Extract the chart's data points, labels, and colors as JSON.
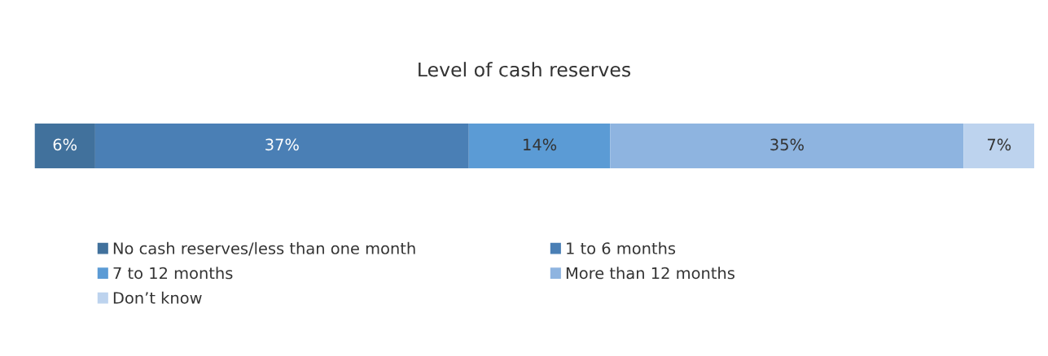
{
  "chart_data": {
    "type": "bar",
    "orientation": "horizontal",
    "stacked": true,
    "title": "Level of cash reserves",
    "categories": [
      null
    ],
    "legend": "bottom",
    "series": [
      {
        "name": "No cash reserves/less than one month",
        "color": "#41719c",
        "values": [
          6
        ],
        "value_labels": [
          "6%"
        ]
      },
      {
        "name": "1 to 6 months",
        "color": "#4a7fb5",
        "values": [
          37
        ],
        "value_labels": [
          "37%"
        ]
      },
      {
        "name": "7 to 12 months",
        "color": "#5b9bd5",
        "values": [
          14
        ],
        "value_labels": [
          "14%"
        ]
      },
      {
        "name": "More than 12 months",
        "color": "#8eb4e0",
        "values": [
          35
        ],
        "value_labels": [
          "35%"
        ]
      },
      {
        "name": "Don’t know",
        "color": "#bdd3ee",
        "values": [
          7
        ],
        "value_labels": [
          "7%"
        ]
      }
    ]
  }
}
